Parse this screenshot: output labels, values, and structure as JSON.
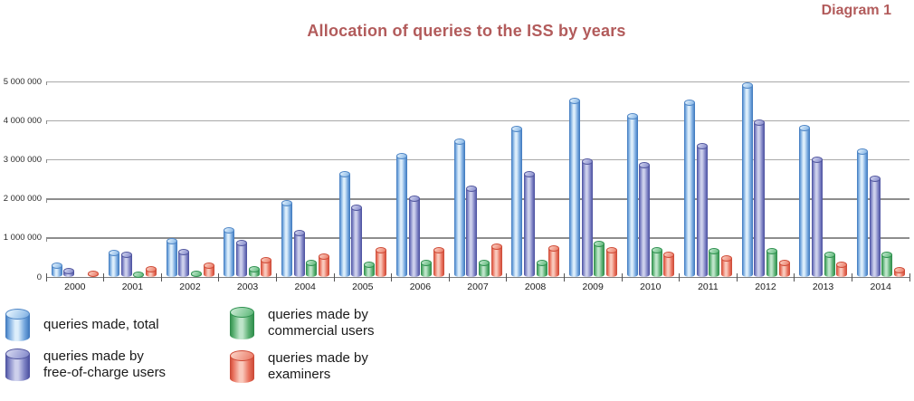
{
  "header": {
    "diagram_label": "Diagram 1",
    "title": "Allocation of queries to the ISS by years",
    "accent_color": "#b25b5b"
  },
  "chart_data": {
    "type": "bar",
    "title": "Allocation of queries to the ISS by years",
    "categories": [
      "2000",
      "2001",
      "2002",
      "2003",
      "2004",
      "2005",
      "2006",
      "2007",
      "2008",
      "2009",
      "2010",
      "2011",
      "2012",
      "2013",
      "2014"
    ],
    "series": [
      {
        "name": "queries made, total",
        "color_key": "blue",
        "values": [
          290000,
          620000,
          930000,
          1200000,
          1900000,
          2630000,
          3100000,
          3480000,
          3790000,
          4520000,
          4110000,
          4470000,
          4900000,
          3830000,
          3220000
        ]
      },
      {
        "name": "queries made by free-of-charge users",
        "color_key": "purple",
        "values": [
          160000,
          580000,
          640000,
          870000,
          1130000,
          1790000,
          2020000,
          2280000,
          2640000,
          2970000,
          2880000,
          3350000,
          3950000,
          3020000,
          2520000
        ]
      },
      {
        "name": "queries made by commercial users",
        "color_key": "green",
        "values": [
          0,
          75000,
          90000,
          210000,
          380000,
          330000,
          360000,
          380000,
          380000,
          860000,
          690000,
          660000,
          660000,
          590000,
          570000
        ]
      },
      {
        "name": "queries made by examiners",
        "color_key": "red",
        "values": [
          90000,
          200000,
          300000,
          440000,
          540000,
          700000,
          700000,
          780000,
          730000,
          690000,
          580000,
          480000,
          370000,
          320000,
          180000
        ]
      }
    ],
    "ylim": [
      0,
      5000000
    ],
    "y_ticks": [
      "0",
      "1 000 000",
      "2 000 000",
      "3 000 000",
      "4 000 000",
      "5 000 000"
    ],
    "grid": true,
    "legend_position": "bottom"
  },
  "colors": {
    "blue": {
      "edge": "#3a74ba",
      "mid": "#74a7de",
      "light": "#ddeefb",
      "topFill": "#9fc6ec",
      "topEdge": "#4f86c6"
    },
    "purple": {
      "edge": "#474c9c",
      "mid": "#7c81c3",
      "light": "#cdd0ec",
      "topFill": "#9ba0d6",
      "topEdge": "#52579f"
    },
    "green": {
      "edge": "#2b8a48",
      "mid": "#58ae70",
      "light": "#bee5ca",
      "topFill": "#7cc793",
      "topEdge": "#2f9150"
    },
    "red": {
      "edge": "#c94734",
      "mid": "#e8705c",
      "light": "#f9c9bc",
      "topFill": "#ef9482",
      "topEdge": "#cf4b37"
    }
  },
  "legend": {
    "items": [
      {
        "label": "queries made, total",
        "color_key": "blue"
      },
      {
        "label": "queries made by\nfree-of-charge users",
        "color_key": "purple"
      },
      {
        "label": "queries made by\ncommercial users",
        "color_key": "green"
      },
      {
        "label": "queries made by\nexaminers",
        "color_key": "red"
      }
    ]
  }
}
